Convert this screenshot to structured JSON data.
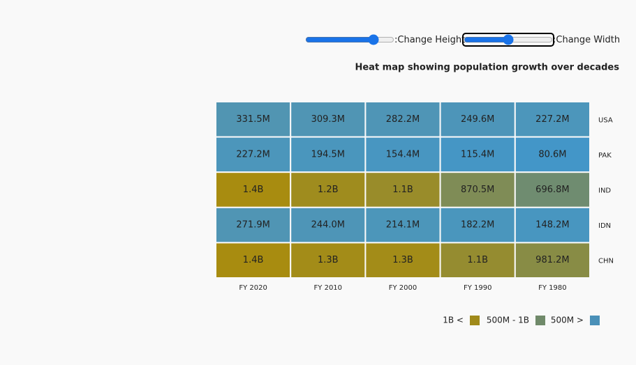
{
  "controls": [
    {
      "label": ":Change Height"
    },
    {
      "label": ":Change Width"
    }
  ],
  "chart_data": {
    "type": "heatmap",
    "title": "Heat map showing population growth over decades",
    "x": [
      "FY 2020",
      "FY 2010",
      "FY 2000",
      "FY 1990",
      "FY 1980"
    ],
    "y": [
      "USA",
      "PAK",
      "IND",
      "IDN",
      "CHN"
    ],
    "values": [
      [
        331.5,
        309.3,
        282.2,
        249.6,
        227.2
      ],
      [
        227.2,
        194.5,
        154.4,
        115.4,
        80.6
      ],
      [
        1400,
        1200,
        1100,
        870.5,
        696.8
      ],
      [
        271.9,
        244.0,
        214.1,
        182.2,
        148.2
      ],
      [
        1400,
        1300,
        1300,
        1100,
        981.2
      ]
    ],
    "value_labels": [
      [
        "331.5M",
        "309.3M",
        "282.2M",
        "249.6M",
        "227.2M"
      ],
      [
        "227.2M",
        "194.5M",
        "154.4M",
        "115.4M",
        "80.6M"
      ],
      [
        "1.4B",
        "1.2B",
        "1.1B",
        "870.5M",
        "696.8M"
      ],
      [
        "271.9M",
        "244.0M",
        "214.1M",
        "182.2M",
        "148.2M"
      ],
      [
        "1.4B",
        "1.3B",
        "1.3B",
        "1.1B",
        "981.2M"
      ]
    ],
    "colors": [
      [
        "#5195b2",
        "#5095b4",
        "#4f95b6",
        "#4d95b9",
        "#4c96bb"
      ],
      [
        "#4c96bb",
        "#4a96bd",
        "#4896c1",
        "#4596c5",
        "#4396c8"
      ],
      [
        "#a88c10",
        "#9f8c1e",
        "#998c2a",
        "#7f8c56",
        "#6f8c70"
      ],
      [
        "#5095b4",
        "#4e95b7",
        "#4c96ba",
        "#4a96bd",
        "#4896c0"
      ],
      [
        "#a88c10",
        "#a38c18",
        "#a38c18",
        "#958c30",
        "#888c45"
      ]
    ],
    "legend": [
      {
        "name": "1B <",
        "color": "#a08a1a"
      },
      {
        "name": "500M - 1B",
        "color": "#708a6a"
      },
      {
        "name": "500M >",
        "color": "#4a90b8"
      }
    ]
  }
}
